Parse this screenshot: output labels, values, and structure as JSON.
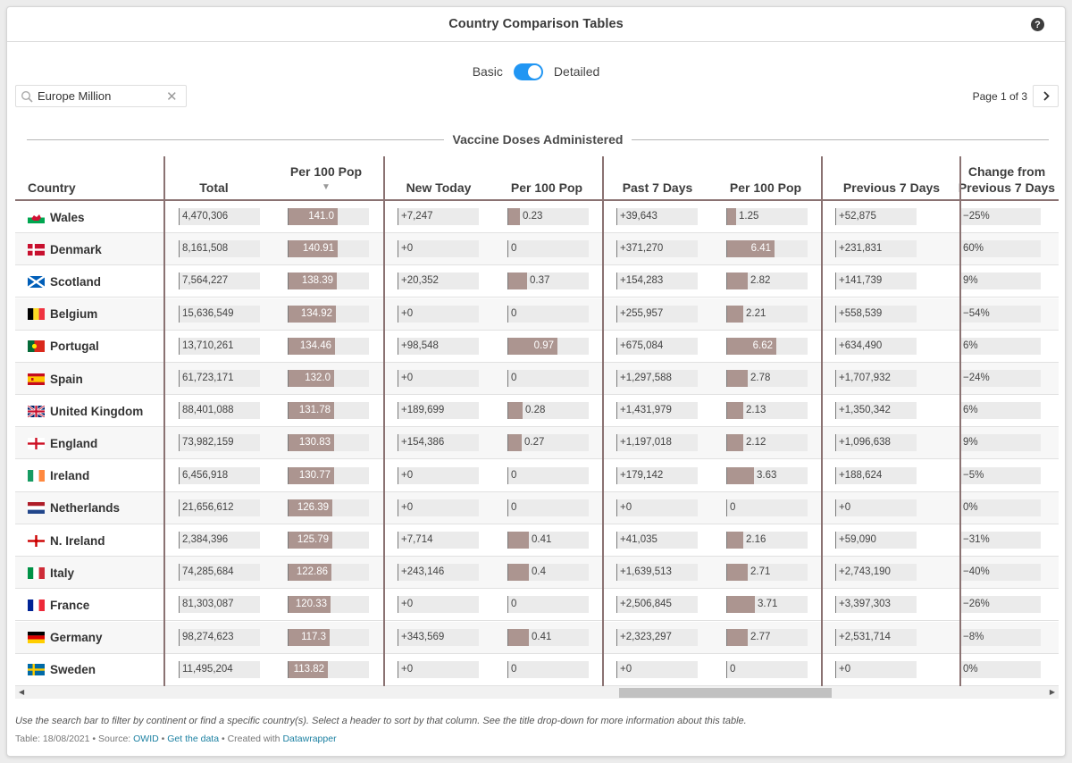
{
  "app": {
    "title": "Country Comparison Tables",
    "help_label": "?"
  },
  "toggle": {
    "left_label": "Basic",
    "right_label": "Detailed",
    "state": "Detailed",
    "color": "#2196f3"
  },
  "search": {
    "value": "Europe Million",
    "placeholder": "Search in table",
    "icon": "search-icon",
    "clear_icon": "close-icon"
  },
  "pager": {
    "label": "Page 1 of 3",
    "next_icon": "chevron-right-icon"
  },
  "section_title": "Vaccine Doses Administered",
  "colors": {
    "bar": "#ac9590",
    "cell_bg": "#ebebeb",
    "divider": "#8a7272",
    "link": "#1d81a2"
  },
  "columns": [
    {
      "key": "country",
      "label": "Country"
    },
    {
      "key": "total",
      "label": "Total"
    },
    {
      "key": "per100",
      "label": "Per 100 Pop",
      "sorted": "desc"
    },
    {
      "key": "new_today",
      "label": "New Today"
    },
    {
      "key": "per100_today",
      "label": "Per 100 Pop"
    },
    {
      "key": "past7",
      "label": "Past 7 Days"
    },
    {
      "key": "per100_7",
      "label": "Per 100 Pop"
    },
    {
      "key": "prev7",
      "label": "Previous 7 Days"
    },
    {
      "key": "change",
      "label": "Change from Previous 7 Days"
    }
  ],
  "bar_scales": {
    "per100": 141.0,
    "per100_today": 0.97,
    "per100_7": 6.62
  },
  "rows": [
    {
      "country": "Wales",
      "flag": "wales",
      "total": "4,470,306",
      "per100": "141.0",
      "new_today": "+7,247",
      "per100_today": "0.23",
      "past7": "+39,643",
      "per100_7": "1.25",
      "prev7": "+52,875",
      "change": "−25%"
    },
    {
      "country": "Denmark",
      "flag": "denmark",
      "total": "8,161,508",
      "per100": "140.91",
      "new_today": "+0",
      "per100_today": "0",
      "past7": "+371,270",
      "per100_7": "6.41",
      "prev7": "+231,831",
      "change": "60%"
    },
    {
      "country": "Scotland",
      "flag": "scotland",
      "total": "7,564,227",
      "per100": "138.39",
      "new_today": "+20,352",
      "per100_today": "0.37",
      "past7": "+154,283",
      "per100_7": "2.82",
      "prev7": "+141,739",
      "change": "9%"
    },
    {
      "country": "Belgium",
      "flag": "belgium",
      "total": "15,636,549",
      "per100": "134.92",
      "new_today": "+0",
      "per100_today": "0",
      "past7": "+255,957",
      "per100_7": "2.21",
      "prev7": "+558,539",
      "change": "−54%"
    },
    {
      "country": "Portugal",
      "flag": "portugal",
      "total": "13,710,261",
      "per100": "134.46",
      "new_today": "+98,548",
      "per100_today": "0.97",
      "past7": "+675,084",
      "per100_7": "6.62",
      "prev7": "+634,490",
      "change": "6%"
    },
    {
      "country": "Spain",
      "flag": "spain",
      "total": "61,723,171",
      "per100": "132.0",
      "new_today": "+0",
      "per100_today": "0",
      "past7": "+1,297,588",
      "per100_7": "2.78",
      "prev7": "+1,707,932",
      "change": "−24%"
    },
    {
      "country": "United Kingdom",
      "flag": "uk",
      "total": "88,401,088",
      "per100": "131.78",
      "new_today": "+189,699",
      "per100_today": "0.28",
      "past7": "+1,431,979",
      "per100_7": "2.13",
      "prev7": "+1,350,342",
      "change": "6%"
    },
    {
      "country": "England",
      "flag": "england",
      "total": "73,982,159",
      "per100": "130.83",
      "new_today": "+154,386",
      "per100_today": "0.27",
      "past7": "+1,197,018",
      "per100_7": "2.12",
      "prev7": "+1,096,638",
      "change": "9%"
    },
    {
      "country": "Ireland",
      "flag": "ireland",
      "total": "6,456,918",
      "per100": "130.77",
      "new_today": "+0",
      "per100_today": "0",
      "past7": "+179,142",
      "per100_7": "3.63",
      "prev7": "+188,624",
      "change": "−5%"
    },
    {
      "country": "Netherlands",
      "flag": "netherlands",
      "total": "21,656,612",
      "per100": "126.39",
      "new_today": "+0",
      "per100_today": "0",
      "past7": "+0",
      "per100_7": "0",
      "prev7": "+0",
      "change": "0%"
    },
    {
      "country": "N. Ireland",
      "flag": "nireland",
      "total": "2,384,396",
      "per100": "125.79",
      "new_today": "+7,714",
      "per100_today": "0.41",
      "past7": "+41,035",
      "per100_7": "2.16",
      "prev7": "+59,090",
      "change": "−31%"
    },
    {
      "country": "Italy",
      "flag": "italy",
      "total": "74,285,684",
      "per100": "122.86",
      "new_today": "+243,146",
      "per100_today": "0.4",
      "past7": "+1,639,513",
      "per100_7": "2.71",
      "prev7": "+2,743,190",
      "change": "−40%"
    },
    {
      "country": "France",
      "flag": "france",
      "total": "81,303,087",
      "per100": "120.33",
      "new_today": "+0",
      "per100_today": "0",
      "past7": "+2,506,845",
      "per100_7": "3.71",
      "prev7": "+3,397,303",
      "change": "−26%"
    },
    {
      "country": "Germany",
      "flag": "germany",
      "total": "98,274,623",
      "per100": "117.3",
      "new_today": "+343,569",
      "per100_today": "0.41",
      "past7": "+2,323,297",
      "per100_7": "2.77",
      "prev7": "+2,531,714",
      "change": "−8%"
    },
    {
      "country": "Sweden",
      "flag": "sweden",
      "total": "11,495,204",
      "per100": "113.82",
      "new_today": "+0",
      "per100_today": "0",
      "past7": "+0",
      "per100_7": "0",
      "prev7": "+0",
      "change": "0%"
    }
  ],
  "footer": {
    "notes": "Use the search bar to filter by continent or find a specific country(s). Select a header to sort by that column. See the title drop-down for more information about this table.",
    "table_date": "Table: 18/08/2021",
    "source_label": "Source:",
    "source_link": "OWID",
    "data_link": "Get the data",
    "created_label": "Created with",
    "created_link": "Datawrapper",
    "separator": "•"
  }
}
